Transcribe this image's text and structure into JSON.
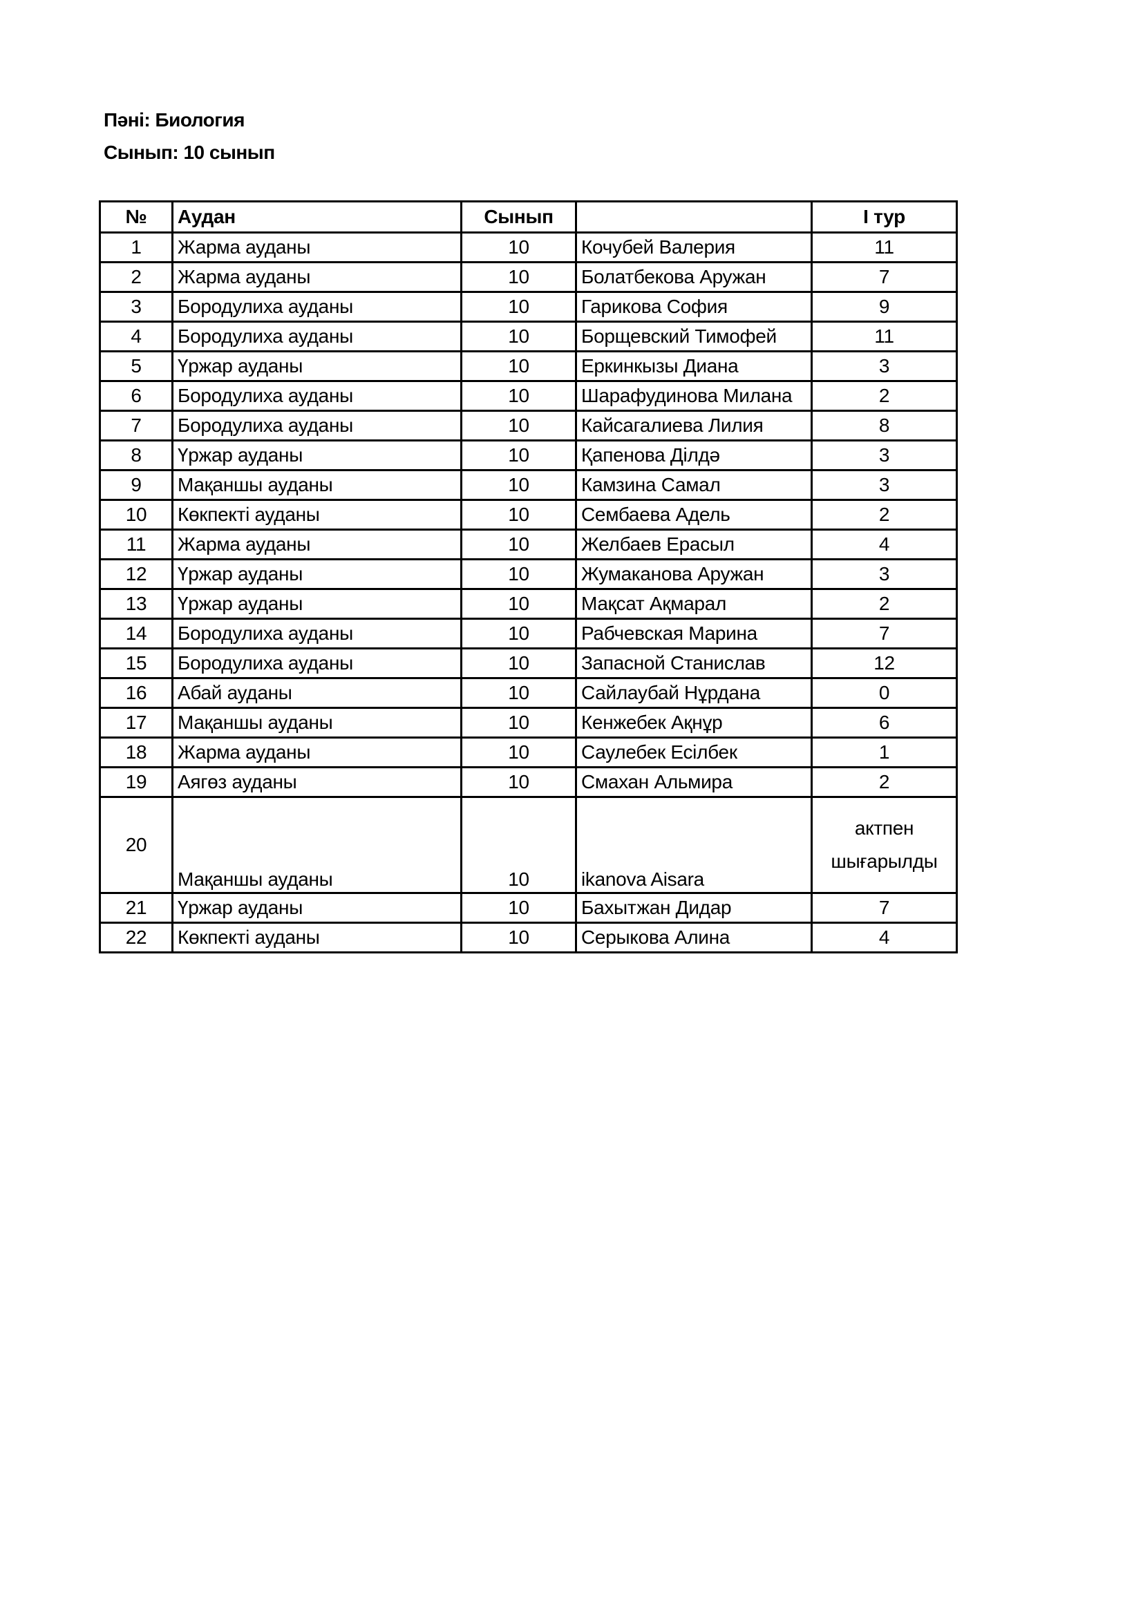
{
  "header": {
    "subject": "Пәні: Биология",
    "grade": "Сынып: 10 сынып"
  },
  "table": {
    "columns": [
      "№",
      "Аудан",
      "Сынып",
      "",
      "I тур"
    ],
    "rows": [
      {
        "no": "1",
        "district": "Жарма ауданы",
        "grade": "10",
        "name": "Кочубей Валерия",
        "score": "11"
      },
      {
        "no": "2",
        "district": "Жарма ауданы",
        "grade": "10",
        "name": "Болатбекова Аружан",
        "score": "7"
      },
      {
        "no": "3",
        "district": "Бородулиха ауданы",
        "grade": "10",
        "name": "Гарикова София",
        "score": "9"
      },
      {
        "no": "4",
        "district": "Бородулиха ауданы",
        "grade": "10",
        "name": "Борщевский Тимофей",
        "score": "11"
      },
      {
        "no": "5",
        "district": "Үржар ауданы",
        "grade": "10",
        "name": "Еркинкызы Диана",
        "score": "3"
      },
      {
        "no": "6",
        "district": "Бородулиха ауданы",
        "grade": "10",
        "name": "Шарафудинова Милана",
        "score": "2"
      },
      {
        "no": "7",
        "district": "Бородулиха ауданы",
        "grade": "10",
        "name": "Кайсагалиева Лилия",
        "score": "8"
      },
      {
        "no": "8",
        "district": "Үржар ауданы",
        "grade": "10",
        "name": "Қапенова Ділдә",
        "score": "3"
      },
      {
        "no": "9",
        "district": "Мақаншы ауданы",
        "grade": "10",
        "name": "Камзина Самал",
        "score": "3"
      },
      {
        "no": "10",
        "district": "Көкпекті ауданы",
        "grade": "10",
        "name": "Сембаева Адель",
        "score": "2"
      },
      {
        "no": "11",
        "district": "Жарма ауданы",
        "grade": "10",
        "name": "Желбаев Ерасыл",
        "score": "4"
      },
      {
        "no": "12",
        "district": "Үржар ауданы",
        "grade": "10",
        "name": "Жумаканова Аружан",
        "score": "3"
      },
      {
        "no": "13",
        "district": "Үржар ауданы",
        "grade": "10",
        "name": "Мақсат Ақмарал",
        "score": "2"
      },
      {
        "no": "14",
        "district": "Бородулиха ауданы",
        "grade": "10",
        "name": "Рабчевская Марина",
        "score": "7"
      },
      {
        "no": "15",
        "district": "Бородулиха ауданы",
        "grade": "10",
        "name": "Запасной Станислав",
        "score": "12"
      },
      {
        "no": "16",
        "district": "Абай ауданы",
        "grade": "10",
        "name": "Сайлаубай Нұрдана",
        "score": "0"
      },
      {
        "no": "17",
        "district": "Мақаншы ауданы",
        "grade": "10",
        "name": "Кенжебек Ақнұр",
        "score": "6"
      },
      {
        "no": "18",
        "district": "Жарма ауданы",
        "grade": "10",
        "name": "Саулебек Есілбек",
        "score": "1"
      },
      {
        "no": "19",
        "district": "Аягөз ауданы",
        "grade": "10",
        "name": "Смахан Альмира",
        "score": "2"
      },
      {
        "no": "20",
        "district": "Мақаншы ауданы",
        "grade": "10",
        "name": "ikanova Aisara",
        "score": "актпен шығарылды"
      },
      {
        "no": "21",
        "district": "Үржар ауданы",
        "grade": "10",
        "name": "Бахытжан Дидар",
        "score": "7"
      },
      {
        "no": "22",
        "district": "Көкпекті ауданы",
        "grade": "10",
        "name": "Серыкова Алина",
        "score": "4"
      }
    ]
  }
}
